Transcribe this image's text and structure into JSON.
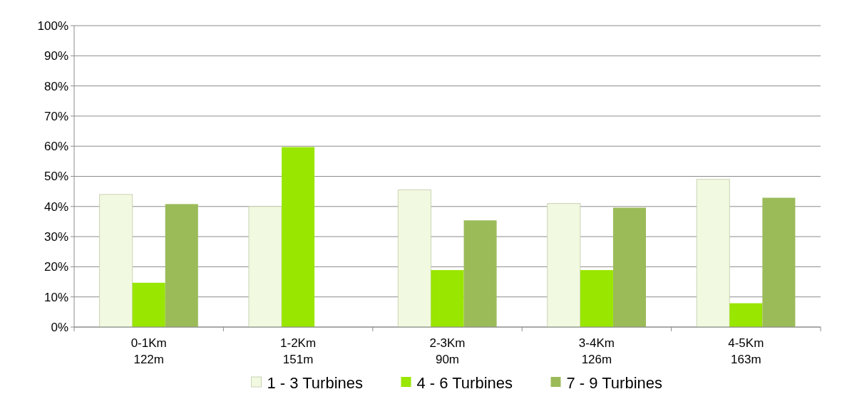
{
  "chart_data": {
    "type": "bar",
    "categories": [
      "0-1Km\n122m",
      "1-2Km\n151m",
      "2-3Km\n90m",
      "3-4Km\n126m",
      "4-5Km\n163m"
    ],
    "series": [
      {
        "name": "1 - 3 Turbines",
        "color": "#f2f9e1",
        "values": [
          44,
          40,
          45.5,
          41,
          49
        ]
      },
      {
        "name": "4 - 6 Turbines",
        "color": "#99e600",
        "values": [
          14.7,
          59.7,
          18.9,
          18.9,
          7.9
        ]
      },
      {
        "name": "7 - 9 Turbines",
        "color": "#9bbb59",
        "values": [
          40.8,
          null,
          35.4,
          39.6,
          42.9
        ]
      }
    ],
    "ylim": [
      0,
      100
    ],
    "yticks": [
      {
        "value": 0,
        "label": "0%"
      },
      {
        "value": 10,
        "label": "10%"
      },
      {
        "value": 20,
        "label": "20%"
      },
      {
        "value": 30,
        "label": "30%"
      },
      {
        "value": 40,
        "label": "40%"
      },
      {
        "value": 50,
        "label": "50%"
      },
      {
        "value": 60,
        "label": "60%"
      },
      {
        "value": 70,
        "label": "70%"
      },
      {
        "value": 80,
        "label": "80%"
      },
      {
        "value": 90,
        "label": "90%"
      },
      {
        "value": 100,
        "label": "100%"
      }
    ],
    "grid": "y",
    "legend": "bottom"
  }
}
